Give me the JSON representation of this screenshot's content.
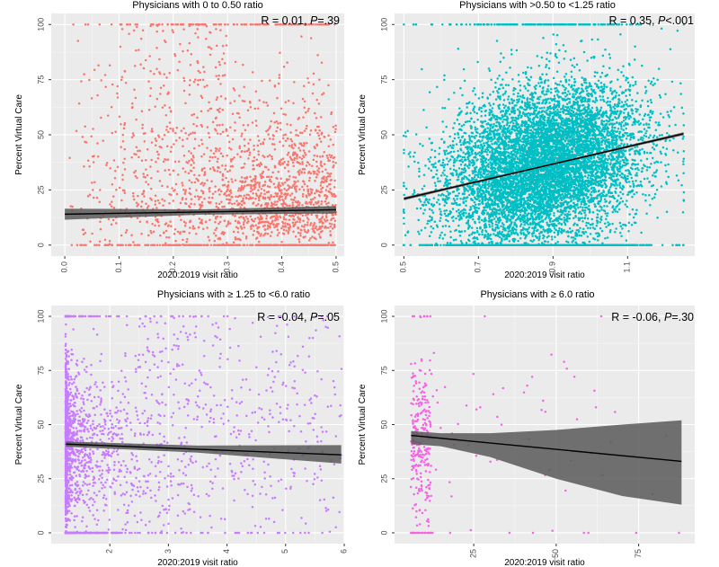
{
  "colors": {
    "panel_bg": "#ebebeb",
    "grid": "#ffffff",
    "axis_text": "#4d4d4d",
    "fit_line": "#000000",
    "ci_band": "#595959"
  },
  "chart_data": [
    {
      "type": "scatter",
      "title": "Physicians with 0 to 0.50 ratio",
      "annotation": "R = 0.01, P=.39",
      "annotation_r": "R = 0.01, ",
      "annotation_p_label": "P",
      "annotation_p_value": "=.39",
      "xlabel": "2020:2019 visit ratio",
      "ylabel": "Percent Virtual Care",
      "xlim": [
        -0.025,
        0.515
      ],
      "ylim": [
        -5,
        105
      ],
      "xticks": [
        0.0,
        0.1,
        0.2,
        0.3,
        0.4,
        0.5
      ],
      "xtick_labels": [
        "0.0",
        "0.1",
        "0.2",
        "0.3",
        "0.4",
        "0.5"
      ],
      "yticks": [
        0,
        25,
        50,
        75,
        100
      ],
      "ytick_labels": [
        "0",
        "25",
        "50",
        "75",
        "100"
      ],
      "x_tick_rotated": true,
      "point_color": "#f8766d",
      "point_count": 2200,
      "distribution": "uniform x from 0 to 0.5, denser near 0.5; many at 0 and 100; values spread 0-100",
      "fit": {
        "x": [
          0.0,
          0.5
        ],
        "y": [
          14,
          16
        ]
      },
      "ci": {
        "x": [
          0.0,
          0.25,
          0.5
        ],
        "lower": [
          11.5,
          13.8,
          14.3
        ],
        "upper": [
          16.5,
          16.2,
          17.7
        ]
      }
    },
    {
      "type": "scatter",
      "title": "Physicians with >0.50 to <1.25 ratio",
      "annotation": "R = 0.35, P<.001",
      "annotation_r": "R = 0.35, ",
      "annotation_p_label": "P",
      "annotation_p_value": "<.001",
      "xlabel": "2020:2019 visit ratio",
      "ylabel": "Percent Virtual Care",
      "xlim": [
        0.475,
        1.28
      ],
      "ylim": [
        -5,
        105
      ],
      "xticks": [
        0.5,
        0.7,
        0.9,
        1.1
      ],
      "xtick_labels": [
        "0.5",
        "0.7",
        "0.9",
        "1.1"
      ],
      "yticks": [
        0,
        25,
        50,
        75,
        100
      ],
      "ytick_labels": [
        "0",
        "25",
        "50",
        "75",
        "100"
      ],
      "x_tick_rotated": true,
      "point_color": "#00bfc4",
      "point_count": 9000,
      "distribution": "dense cloud across 0.5-1.25, increasing trend; rows at 0 and 100",
      "fit": {
        "x": [
          0.5,
          1.25
        ],
        "y": [
          21,
          50.5
        ]
      },
      "ci": {
        "x": [
          0.5,
          0.875,
          1.25
        ],
        "lower": [
          20.3,
          35.5,
          49.8
        ],
        "upper": [
          21.7,
          36.1,
          51.2
        ]
      }
    },
    {
      "type": "scatter",
      "title": "Physicians with  ≥ 1.25 to <6.0 ratio",
      "annotation": "R = -0.04, P=.05",
      "annotation_r": "R = -0.04, ",
      "annotation_p_label": "P",
      "annotation_p_value": "=.05",
      "xlabel": "2020:2019 visit ratio",
      "ylabel": "Percent Virtual Care",
      "xlim": [
        1.0,
        6.0
      ],
      "ylim": [
        -5,
        105
      ],
      "xticks": [
        2,
        3,
        4,
        5,
        6
      ],
      "xtick_labels": [
        "2",
        "3",
        "4",
        "5",
        "6"
      ],
      "yticks": [
        0,
        25,
        50,
        75,
        100
      ],
      "ytick_labels": [
        "0",
        "25",
        "50",
        "75",
        "100"
      ],
      "x_tick_rotated": true,
      "point_color": "#c77cff",
      "point_count": 2400,
      "distribution": "very dense near x=1.25-1.6 at y 30-70; sparse to the right",
      "fit": {
        "x": [
          1.25,
          5.95
        ],
        "y": [
          41,
          36
        ]
      },
      "ci": {
        "x": [
          1.25,
          3.5,
          5.95
        ],
        "lower": [
          39.8,
          37.0,
          32.0
        ],
        "upper": [
          42.2,
          40.3,
          40.5
        ]
      }
    },
    {
      "type": "scatter",
      "title": "Physicians with  ≥ 6.0 ratio",
      "annotation": "R = -0.06, P=.30",
      "annotation_r": "R = -0.06, ",
      "annotation_p_label": "P",
      "annotation_p_value": "=.30",
      "xlabel": "2020:2019 visit ratio",
      "ylabel": "Percent Virtual Care",
      "xlim": [
        1.0,
        92.0
      ],
      "ylim": [
        -5,
        105
      ],
      "xticks": [
        25,
        50,
        75
      ],
      "xtick_labels": [
        "25",
        "50",
        "75"
      ],
      "yticks": [
        0,
        25,
        50,
        75,
        100
      ],
      "ytick_labels": [
        "0",
        "25",
        "50",
        "75",
        "100"
      ],
      "x_tick_rotated": true,
      "point_color": "#f564e3",
      "point_count": 330,
      "distribution": "most points at x 6-12; sparse to right up to ~88",
      "fit": {
        "x": [
          6,
          88
        ],
        "y": [
          45,
          33
        ]
      },
      "ci": {
        "x": [
          6,
          15,
          30,
          50,
          70,
          88
        ],
        "lower": [
          41,
          40,
          35,
          25,
          17,
          13
        ],
        "upper": [
          47,
          46,
          46,
          47.5,
          50,
          52
        ]
      }
    }
  ]
}
